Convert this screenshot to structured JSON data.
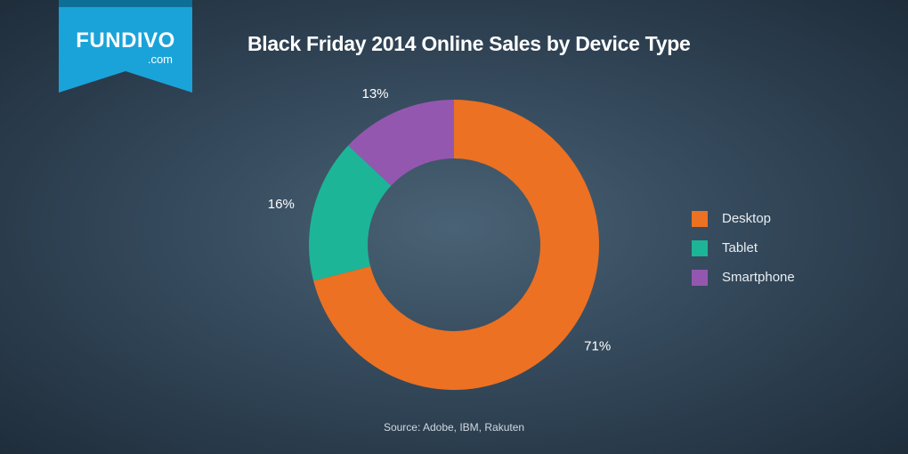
{
  "logo": {
    "main": "FUNDIVO",
    "sub": ".com"
  },
  "colors": {
    "desktop": "#ec7122",
    "tablet": "#1db597",
    "smartphone": "#9457b0",
    "ribbon": "#1aa3d9",
    "ribbon_dark": "#0e6f96"
  },
  "chart_data": {
    "type": "pie",
    "variant": "donut",
    "title": "Black Friday 2014 Online Sales by Device Type",
    "categories": [
      "Desktop",
      "Tablet",
      "Smartphone"
    ],
    "values": [
      71,
      16,
      13
    ],
    "value_labels": [
      "71%",
      "16%",
      "13%"
    ],
    "legend_position": "right",
    "source": "Source: Adobe, IBM, Rakuten"
  }
}
